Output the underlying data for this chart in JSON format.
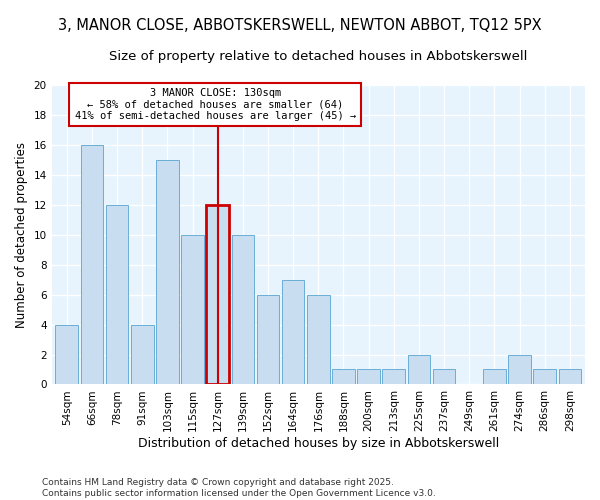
{
  "title": "3, MANOR CLOSE, ABBOTSKERSWELL, NEWTON ABBOT, TQ12 5PX",
  "subtitle": "Size of property relative to detached houses in Abbotskerswell",
  "xlabel": "Distribution of detached houses by size in Abbotskerswell",
  "ylabel": "Number of detached properties",
  "bins": [
    "54sqm",
    "66sqm",
    "78sqm",
    "91sqm",
    "103sqm",
    "115sqm",
    "127sqm",
    "139sqm",
    "152sqm",
    "164sqm",
    "176sqm",
    "188sqm",
    "200sqm",
    "213sqm",
    "225sqm",
    "237sqm",
    "249sqm",
    "261sqm",
    "274sqm",
    "286sqm",
    "298sqm"
  ],
  "values": [
    4,
    16,
    12,
    4,
    15,
    10,
    12,
    10,
    6,
    7,
    6,
    1,
    1,
    1,
    2,
    1,
    0,
    1,
    2,
    1,
    1
  ],
  "bar_color": "#c8ddf0",
  "bar_edge_color": "#6aaed6",
  "highlight_bar_index": 6,
  "highlight_color": "#cc0000",
  "annotation_text": "3 MANOR CLOSE: 130sqm\n← 58% of detached houses are smaller (64)\n41% of semi-detached houses are larger (45) →",
  "footer": "Contains HM Land Registry data © Crown copyright and database right 2025.\nContains public sector information licensed under the Open Government Licence v3.0.",
  "ylim": [
    0,
    20
  ],
  "yticks": [
    0,
    2,
    4,
    6,
    8,
    10,
    12,
    14,
    16,
    18,
    20
  ],
  "background_color": "#ffffff",
  "plot_bg_color": "#e8f4fd",
  "title_fontsize": 10.5,
  "subtitle_fontsize": 9.5,
  "xlabel_fontsize": 9,
  "ylabel_fontsize": 8.5,
  "tick_fontsize": 7.5,
  "footer_fontsize": 6.5
}
